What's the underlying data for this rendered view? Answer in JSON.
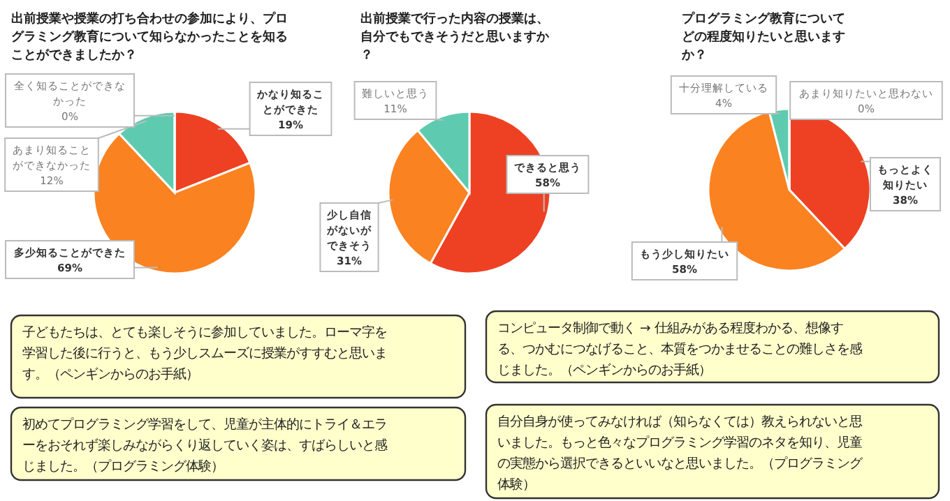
{
  "chart_data": [
    {
      "type": "pie",
      "title": "出前授業や授業の打ち合わせの参加により、プログラミング教育について知らなかったことを知ることができましたか？",
      "categories": [
        "かなり知ることができた",
        "多少知ることができた",
        "あまり知ることができなかった",
        "全く知ることができなかった"
      ],
      "values": [
        19,
        69,
        12,
        0
      ],
      "colors": [
        "#ee4123",
        "#fb8221",
        "#5ecbb0",
        "#a5a5a5"
      ],
      "value_labels": [
        "19%",
        "69%",
        "12%",
        "0%"
      ]
    },
    {
      "type": "pie",
      "title": "出前授業で行った内容の授業は、自分でもできそうだと思いますか？",
      "categories": [
        "できると思う",
        "少し自信がないができそう",
        "難しいと思う"
      ],
      "values": [
        58,
        31,
        11
      ],
      "colors": [
        "#ee4123",
        "#fb8221",
        "#5ecbb0"
      ],
      "value_labels": [
        "58%",
        "31%",
        "11%"
      ]
    },
    {
      "type": "pie",
      "title": "プログラミング教育についてどの程度知りたいと思いますか？",
      "categories": [
        "もっとよく知りたい",
        "もう少し知りたい",
        "十分理解している",
        "あまり知りたいと思わない"
      ],
      "values": [
        38,
        58,
        4,
        0
      ],
      "colors": [
        "#ee4123",
        "#fb8221",
        "#5ecbb0",
        "#a5a5a5"
      ],
      "value_labels": [
        "38%",
        "58%",
        "4%",
        "0%"
      ]
    },
    {
      "type": "other",
      "annotations": [
        "子どもたちは、とても楽しそうに参加していました。ローマ字を学習した後に行うと、もう少しスムーズに授業がすすむと思います。（ペンギンからのお手紙）",
        "初めてプログラミング学習をして、児童が主体的にトライ＆エラーをおそれず楽しみながらくり返していく姿は、すばらしいと感じました。（プログラミング体験）",
        "コンピュータ制御で動く → 仕組みがある程度わかる、想像する、つかむにつなげること、本質をつかませることの難しさを感じました。（ペンギンからのお手紙）",
        "自分自身が使ってみなければ（知らなくては）教えられないと思いました。もっと色々なプログラミング学習のネタを知り、児童の実態から選択できるといいなと思いました。（プログラミング体験）"
      ]
    }
  ]
}
